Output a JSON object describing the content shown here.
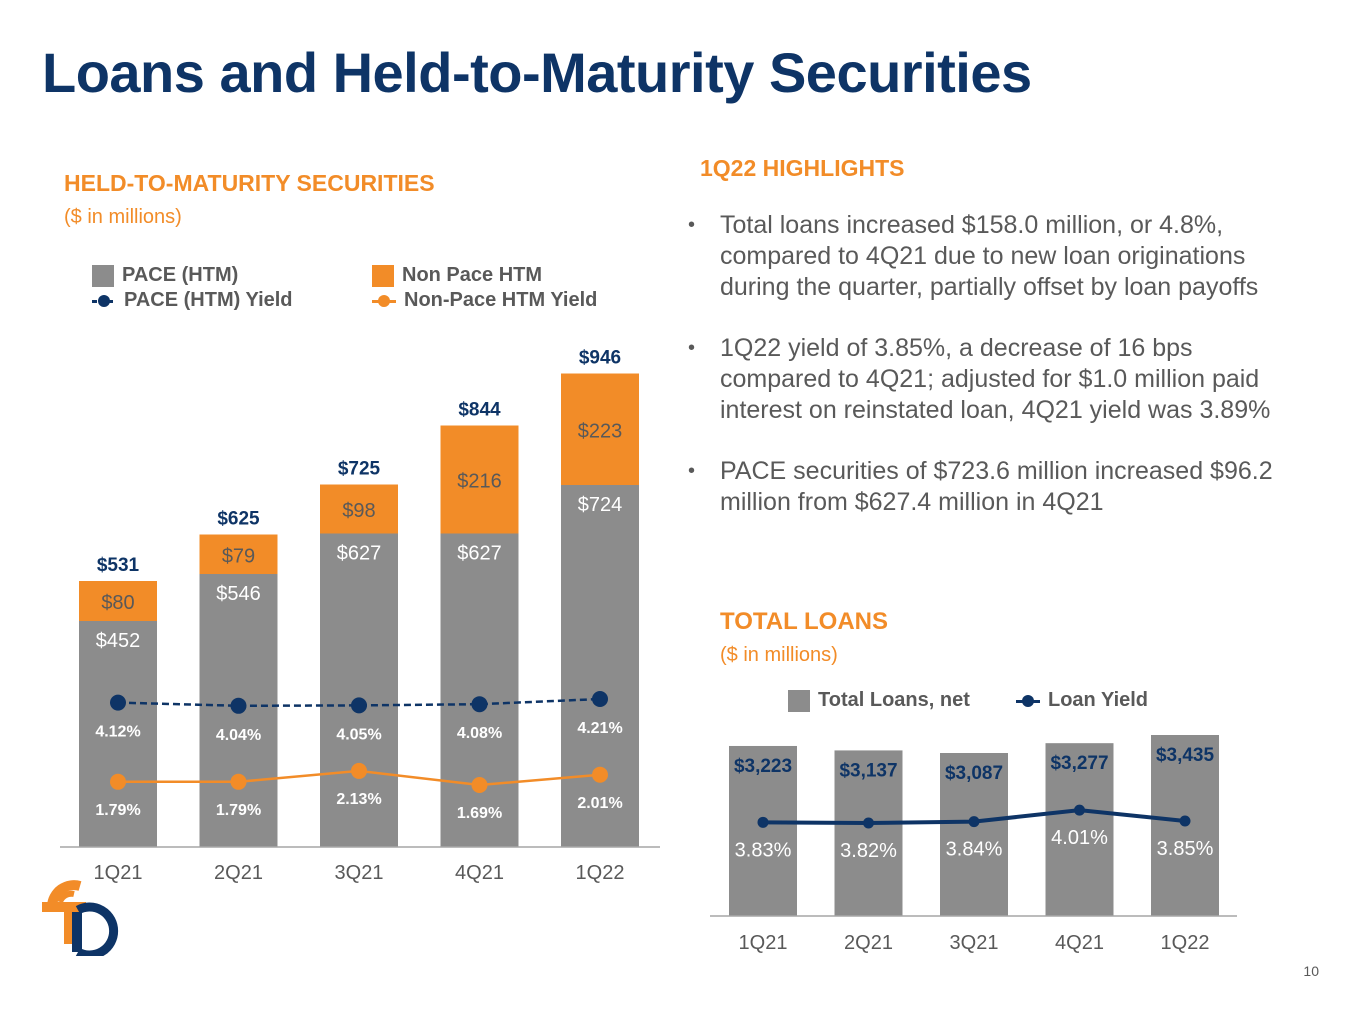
{
  "page": {
    "title": "Loans and Held-to-Maturity Securities",
    "page_number": "10"
  },
  "htm": {
    "section_title": "HELD-TO-MATURITY SECURITIES",
    "subtitle": "($ in millions)",
    "legend": {
      "pace": "PACE (HTM)",
      "non_pace": "Non Pace HTM",
      "pace_yield": "PACE (HTM) Yield",
      "non_pace_yield": "Non-Pace HTM Yield"
    }
  },
  "highlights": {
    "title": "1Q22 HIGHLIGHTS",
    "bullets": [
      "Total loans increased $158.0 million, or 4.8%, compared to 4Q21 due to new loan originations during the quarter, partially offset by loan payoffs",
      "1Q22 yield of 3.85%, a decrease of 16 bps compared to 4Q21; adjusted for $1.0 million paid interest on reinstated loan, 4Q21 yield was 3.89%",
      "PACE securities of $723.6 million increased $96.2 million from $627.4 million in 4Q21"
    ]
  },
  "loans": {
    "section_title": "TOTAL LOANS",
    "subtitle": "($ in millions)",
    "legend": {
      "total": "Total Loans, net",
      "yield": "Loan Yield"
    }
  },
  "colors": {
    "navy": "#0e3466",
    "orange": "#f28c28",
    "gray_bar": "#8c8c8c",
    "text_gray": "#595959"
  },
  "chart_data": [
    {
      "type": "bar",
      "stacked": true,
      "title": "HELD-TO-MATURITY SECURITIES",
      "subtitle": "($ in millions)",
      "categories": [
        "1Q21",
        "2Q21",
        "3Q21",
        "4Q21",
        "1Q22"
      ],
      "series": [
        {
          "name": "PACE (HTM)",
          "values": [
            452,
            546,
            627,
            627,
            724
          ],
          "labels": [
            "$452",
            "$546",
            "$627",
            "$627",
            "$724"
          ],
          "color": "#8c8c8c"
        },
        {
          "name": "Non Pace HTM",
          "values": [
            80,
            79,
            98,
            216,
            223
          ],
          "labels": [
            "$80",
            "$79",
            "$98",
            "$216",
            "$223"
          ],
          "color": "#f28c28"
        }
      ],
      "totals": [
        531,
        625,
        725,
        844,
        946
      ],
      "total_labels": [
        "$531",
        "$625",
        "$725",
        "$844",
        "$946"
      ],
      "line_series": [
        {
          "name": "PACE (HTM) Yield",
          "values": [
            4.12,
            4.04,
            4.05,
            4.08,
            4.21
          ],
          "labels": [
            "4.12%",
            "4.04%",
            "4.05%",
            "4.08%",
            "4.21%"
          ],
          "color": "#0e3466",
          "dashed": true
        },
        {
          "name": "Non-Pace HTM Yield",
          "values": [
            1.79,
            1.79,
            2.13,
            1.69,
            2.01
          ],
          "labels": [
            "1.79%",
            "1.79%",
            "2.13%",
            "1.69%",
            "2.01%"
          ],
          "color": "#f28c28",
          "dashed": false
        }
      ],
      "ylim": [
        0,
        1000
      ],
      "legend": "top",
      "grid": false
    },
    {
      "type": "bar",
      "title": "TOTAL LOANS",
      "subtitle": "($ in millions)",
      "categories": [
        "1Q21",
        "2Q21",
        "3Q21",
        "4Q21",
        "1Q22"
      ],
      "series": [
        {
          "name": "Total Loans, net",
          "values": [
            3223,
            3137,
            3087,
            3277,
            3435
          ],
          "labels": [
            "$3,223",
            "$3,137",
            "$3,087",
            "$3,277",
            "$3,435"
          ],
          "color": "#8c8c8c"
        }
      ],
      "line_series": [
        {
          "name": "Loan Yield",
          "values": [
            3.83,
            3.82,
            3.84,
            4.01,
            3.85
          ],
          "labels": [
            "3.83%",
            "3.82%",
            "3.84%",
            "4.01%",
            "3.85%"
          ],
          "color": "#0e3466",
          "dashed": false
        }
      ],
      "ylim": [
        0,
        3500
      ],
      "legend": "top",
      "grid": false
    }
  ]
}
